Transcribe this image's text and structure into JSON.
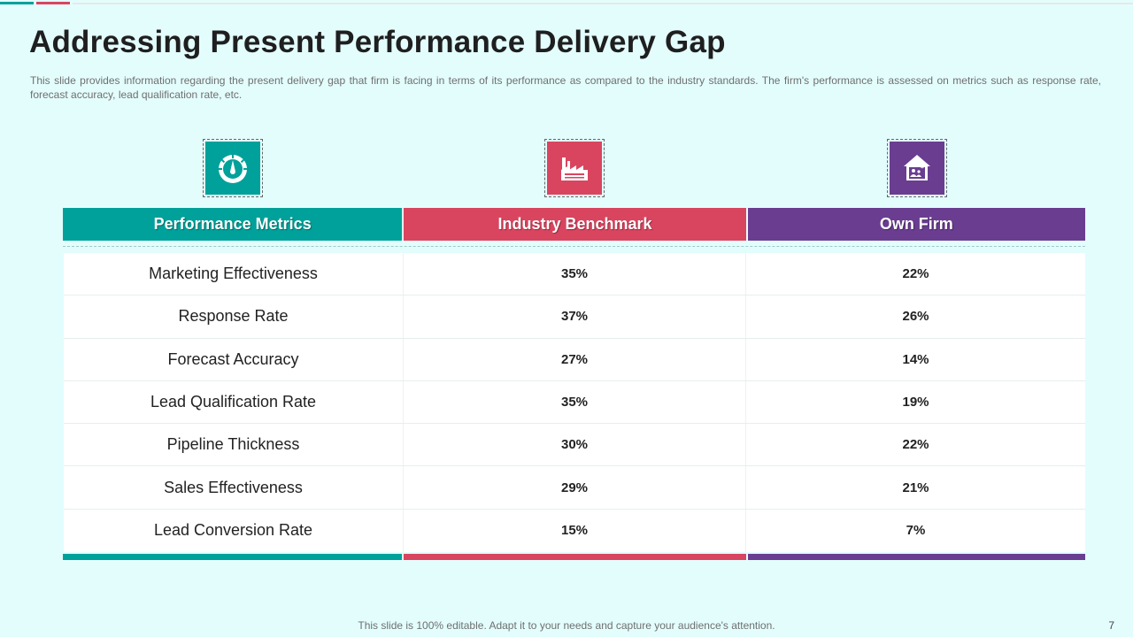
{
  "slide": {
    "title": "Addressing Present Performance Delivery Gap",
    "description": "This slide provides information regarding the present delivery gap that firm is facing in terms of its performance as compared to the industry standards. The firm's performance is assessed on metrics such as response rate, forecast accuracy, lead qualification rate, etc.",
    "footer": "This slide is 100% editable. Adapt it to your needs and capture your audience's attention.",
    "page_number": "7"
  },
  "colors": {
    "teal": "#00a19a",
    "red": "#d9455f",
    "purple": "#6a3d91",
    "background": "#e3fdfd"
  },
  "icons": {
    "col1": "speedometer-icon",
    "col2": "factory-icon",
    "col3": "house-dollar-icon"
  },
  "table": {
    "headers": [
      "Performance Metrics",
      "Industry Benchmark",
      "Own Firm"
    ],
    "rows": [
      {
        "metric": "Marketing Effectiveness",
        "benchmark": "35%",
        "own": "22%"
      },
      {
        "metric": "Response Rate",
        "benchmark": "37%",
        "own": "26%"
      },
      {
        "metric": "Forecast Accuracy",
        "benchmark": "27%",
        "own": "14%"
      },
      {
        "metric": "Lead Qualification Rate",
        "benchmark": "35%",
        "own": "19%"
      },
      {
        "metric": "Pipeline Thickness",
        "benchmark": "30%",
        "own": "22%"
      },
      {
        "metric": "Sales Effectiveness",
        "benchmark": "29%",
        "own": "21%"
      },
      {
        "metric": "Lead Conversion Rate",
        "benchmark": "15%",
        "own": "7%"
      }
    ]
  }
}
